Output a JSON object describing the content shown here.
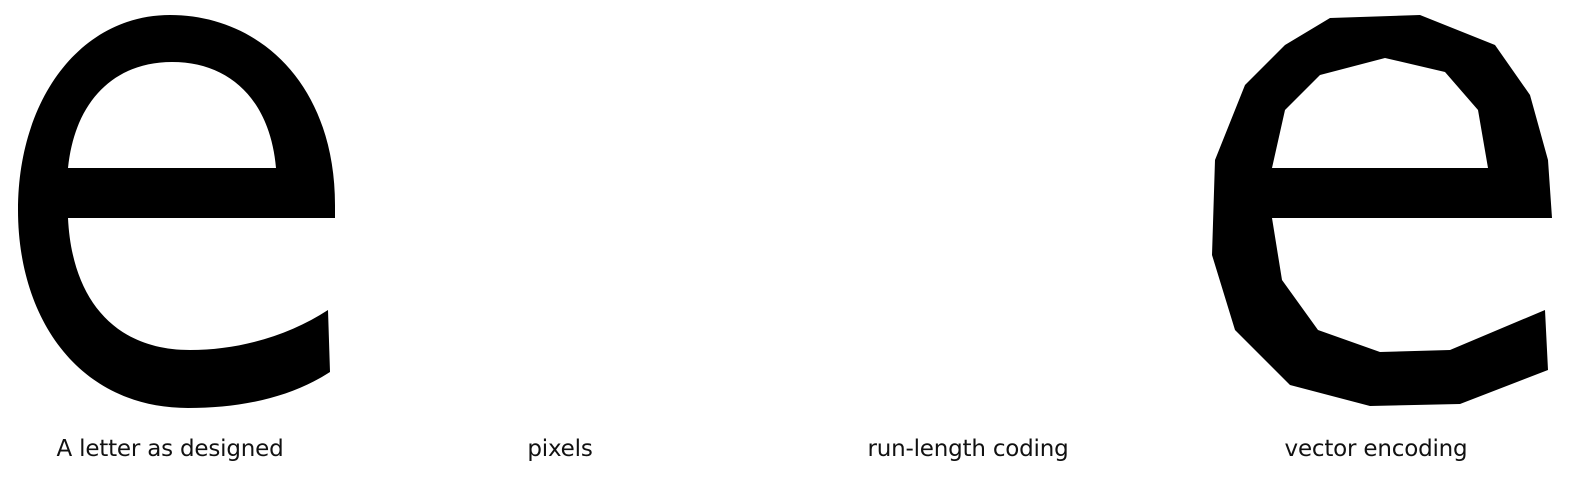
{
  "figure": {
    "panels": [
      {
        "id": "designed",
        "caption": "A letter as designed",
        "rendering": "solid-outline"
      },
      {
        "id": "pixels",
        "caption": "pixels",
        "rendering": "pixel-grid"
      },
      {
        "id": "run-length",
        "caption": "run-length coding",
        "rendering": "vertical-runs"
      },
      {
        "id": "vector",
        "caption": "vector encoding",
        "rendering": "polygon-outline"
      }
    ],
    "letter": "e",
    "colors": {
      "ink": "#000000",
      "background": "#ffffff"
    }
  }
}
